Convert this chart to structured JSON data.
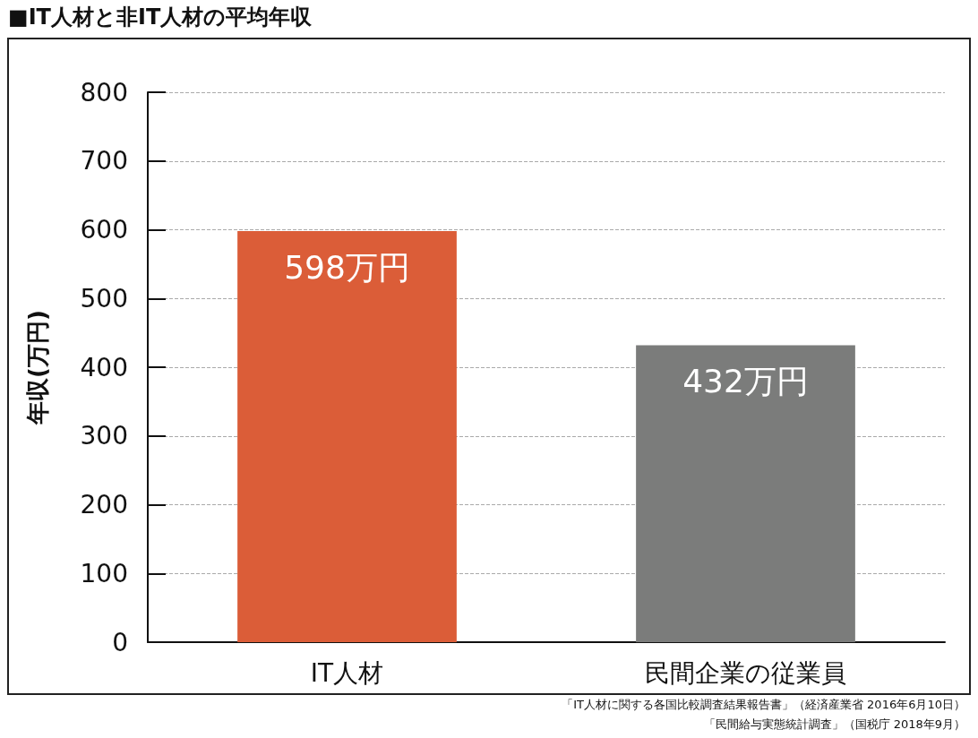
{
  "chart_data": {
    "type": "bar",
    "title": "■IT人材と非IT人材の平均年収",
    "ylabel": "年収(万円)",
    "categories": [
      "IT人材",
      "民間企業の従業員"
    ],
    "values": [
      598,
      432
    ],
    "colors": [
      "#db5d38",
      "#7b7c7b"
    ],
    "value_labels": [
      "598万円",
      "432万円"
    ],
    "ylim": [
      0,
      800
    ],
    "yticks": [
      0,
      100,
      200,
      300,
      400,
      500,
      600,
      700,
      800
    ],
    "grid": "y",
    "annotations": [
      "「IT人材に関する各国比較調査結果報告書」（経済産業省 2016年6月10日）",
      "「民間給与実態統計調査」（国税庁 2018年9月）"
    ]
  }
}
